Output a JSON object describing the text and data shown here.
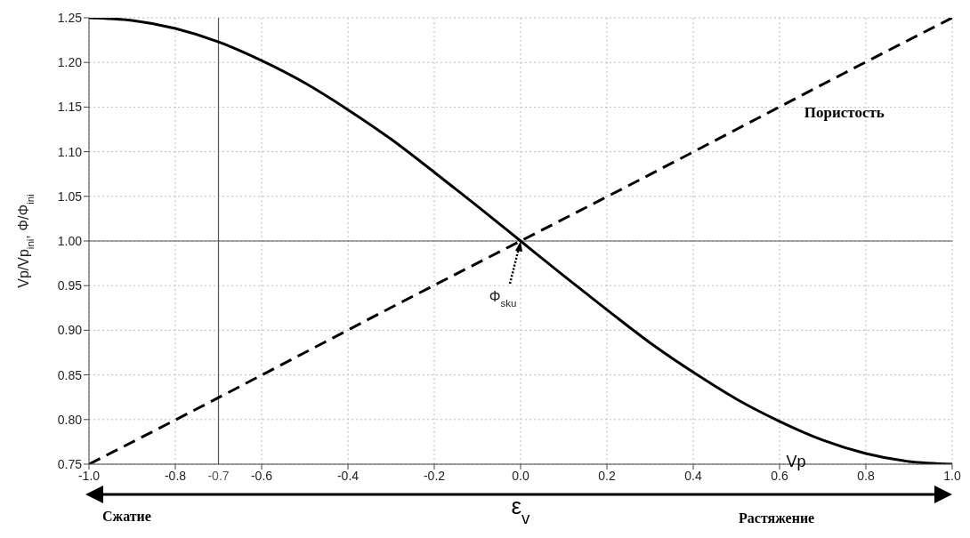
{
  "chart_data": {
    "type": "line",
    "xlabel": "ε$_{v}$",
    "ylabel": "Vp/Vp$_{ini}$, Φ/Φ$_{ini}$",
    "xlim": [
      -1,
      1
    ],
    "ylim": [
      0.75,
      1.25
    ],
    "xticks": [
      {
        "value": -1,
        "label": "-1.0"
      },
      -0.8,
      -0.6,
      -0.4,
      -0.2,
      {
        "value": 0,
        "label": "0.0"
      },
      0.2,
      0.4,
      0.6,
      0.8,
      {
        "value": 1,
        "label": "1.0"
      }
    ],
    "yticks": [
      0.75,
      {
        "value": 0.8,
        "label": "0.80"
      },
      0.85,
      {
        "value": 0.9,
        "label": "0.90"
      },
      0.95,
      {
        "value": 1,
        "label": "1.00"
      },
      1.05,
      {
        "value": 1.1,
        "label": "1.10"
      },
      1.15,
      {
        "value": 1.2,
        "label": "1.20"
      },
      1.25
    ],
    "grid": true,
    "legend": false,
    "marker": "none",
    "series": [
      {
        "name": "Пористость",
        "color": "#000000",
        "line_style": "dashed",
        "x": [
          -1,
          -0.75,
          -0.5,
          -0.25,
          0,
          0.25,
          0.5,
          0.75,
          1
        ],
        "values": [
          0.75,
          0.812,
          0.875,
          0.938,
          1.0,
          1.062,
          1.125,
          1.188,
          1.25
        ]
      },
      {
        "name": "Vp",
        "color": "#000000",
        "line_style": "solid",
        "x": [
          -1,
          -0.9,
          -0.8,
          -0.7,
          -0.6,
          -0.5,
          -0.4,
          -0.3,
          -0.2,
          -0.1,
          0,
          0.1,
          0.2,
          0.3,
          0.4,
          0.5,
          0.6,
          0.7,
          0.8,
          0.9,
          1
        ],
        "values": [
          1.25,
          1.247,
          1.238,
          1.223,
          1.202,
          1.177,
          1.147,
          1.114,
          1.077,
          1.039,
          1.0,
          0.961,
          0.923,
          0.886,
          0.853,
          0.823,
          0.798,
          0.777,
          0.762,
          0.753,
          0.75
        ]
      }
    ],
    "ref_lines": [
      {
        "axis": "x",
        "value": -0.7,
        "label": "-0.7",
        "color": "#555555"
      },
      {
        "axis": "y",
        "value": 1.0,
        "color": "#555555"
      }
    ],
    "annotations": [
      {
        "text": "Φ$_{sku}$",
        "x": 0,
        "y": 1.0
      },
      "Сжатие",
      "Растяжение"
    ]
  }
}
